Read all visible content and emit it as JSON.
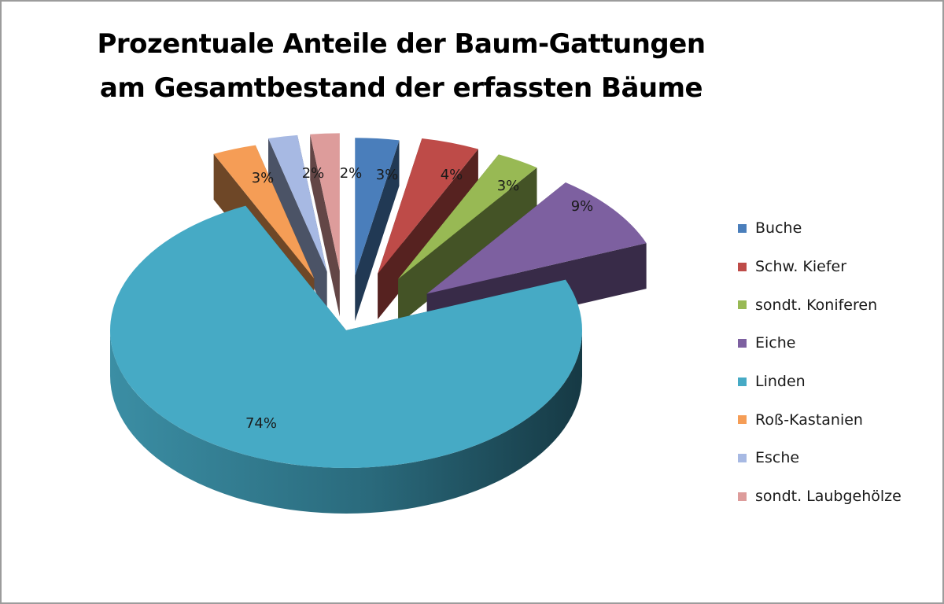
{
  "chart_data": {
    "type": "pie",
    "title_lines": [
      "Prozentuale Anteile der Baum-Gattungen",
      "am Gesamtbestand der erfassten Bäume"
    ],
    "slices": [
      {
        "name": "Buche",
        "value": 3,
        "label": "3%",
        "color": "#4a7ebb"
      },
      {
        "name": "Schw. Kiefer",
        "value": 4,
        "label": "4%",
        "color": "#be4b48"
      },
      {
        "name": "sondt. Koniferen",
        "value": 3,
        "label": "3%",
        "color": "#98b954"
      },
      {
        "name": "Eiche",
        "value": 9,
        "label": "9%",
        "color": "#7d60a0"
      },
      {
        "name": "Linden",
        "value": 74,
        "label": "74%",
        "color": "#46aac5"
      },
      {
        "name": "Roß-Kastanien",
        "value": 3,
        "label": "3%",
        "color": "#f59d56"
      },
      {
        "name": "Esche",
        "value": 2,
        "label": "2%",
        "color": "#a7b9e3"
      },
      {
        "name": "sondt. Laubgehölze",
        "value": 2,
        "label": "2%",
        "color": "#dd9c9b"
      }
    ],
    "legend_position": "right",
    "style": "3d-exploded"
  }
}
